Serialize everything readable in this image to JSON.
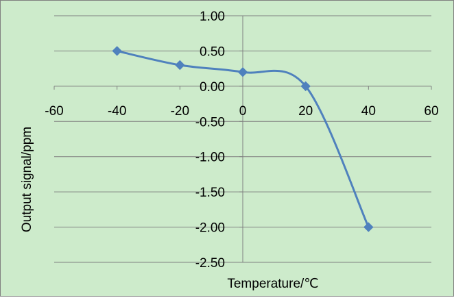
{
  "chart_data": {
    "type": "line",
    "smooth": true,
    "title": "",
    "xlabel": "Temperature/℃",
    "ylabel": "Output signal/ppm",
    "xlim": [
      -60,
      60
    ],
    "ylim": [
      -2.5,
      1.0
    ],
    "x_ticks": [
      -60,
      -40,
      -20,
      0,
      20,
      40,
      60
    ],
    "x_tick_labels": [
      "-60",
      "-40",
      "-20",
      "0",
      "20",
      "40",
      "60"
    ],
    "y_ticks": [
      1.0,
      0.5,
      0.0,
      -0.5,
      -1.0,
      -1.5,
      -2.0,
      -2.5
    ],
    "y_tick_labels": [
      "1.00",
      "0.50",
      "0.00",
      "-0.50",
      "-1.00",
      "-1.50",
      "-2.00",
      "-2.50"
    ],
    "grid": "horizontal",
    "legend": "none",
    "series": [
      {
        "x": [
          -40,
          -20,
          0,
          20,
          40
        ],
        "values": [
          0.5,
          0.3,
          0.2,
          0.0,
          -2.0
        ],
        "marker": "diamond"
      }
    ],
    "colors": {
      "background": "#CDEBCB",
      "line": "#4F81BD",
      "grid": "#808080",
      "border": "#7F7F7F"
    }
  }
}
